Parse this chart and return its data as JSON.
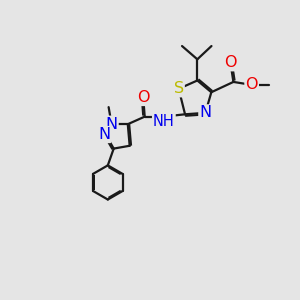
{
  "background_color": "#e5e5e5",
  "atom_colors": {
    "C": "#1a1a1a",
    "N": "#0000ee",
    "O": "#ee0000",
    "S": "#bbbb00",
    "H": "#444444"
  },
  "bond_color": "#1a1a1a",
  "bond_width": 1.6,
  "font_size_atoms": 10.5,
  "xlim": [
    0,
    10
  ],
  "ylim": [
    0,
    10
  ],
  "figsize": [
    3.0,
    3.0
  ],
  "dpi": 100
}
